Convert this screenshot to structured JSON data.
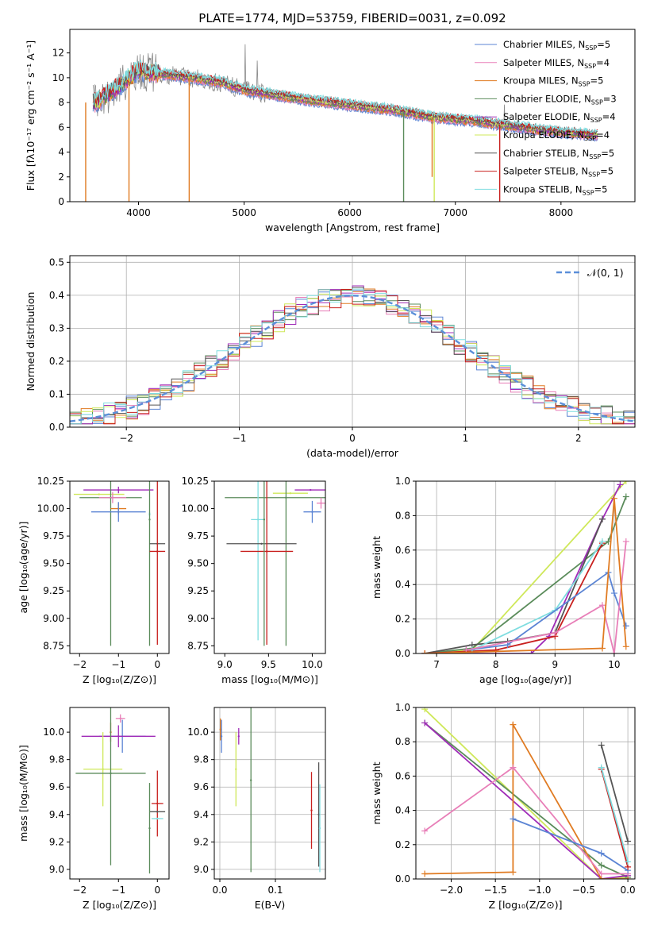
{
  "figure_title": "PLATE=1774, MJD=53759, FIBERID=0031, z=0.092",
  "colors": {
    "Chabrier MILES": "#5b84d4",
    "Salpeter MILES": "#e87fb8",
    "Kroupa MILES": "#e07b22",
    "Chabrier ELODIE": "#5b8c5b",
    "Salpeter ELODIE": "#a02cb8",
    "Kroupa ELODIE": "#cfe85a",
    "Chabrier STELIB": "#555555",
    "Salpeter STELIB": "#c8201e",
    "Kroupa STELIB": "#7fdde0",
    "gaussian": "#5b8fd9",
    "noisy_data": "#888888"
  },
  "chart_data": [
    {
      "id": "spectrum",
      "type": "line",
      "xlabel": "wavelength [Angstrom, rest frame]",
      "ylabel": "Flux [fλ10⁻¹⁷ erg cm⁻² s⁻¹ A⁻¹]",
      "xlim": [
        3350,
        8700
      ],
      "ylim": [
        0,
        13.9
      ],
      "xticks": [
        4000,
        5000,
        6000,
        7000,
        8000
      ],
      "yticks": [
        0,
        2,
        4,
        6,
        8,
        10,
        12
      ],
      "legend_position": "top-right",
      "legend": [
        {
          "name": "Chabrier MILES",
          "nssp": "5"
        },
        {
          "name": "Salpeter MILES",
          "nssp": "4"
        },
        {
          "name": "Kroupa MILES",
          "nssp": "5"
        },
        {
          "name": "Chabrier ELODIE",
          "nssp": "3"
        },
        {
          "name": "Salpeter ELODIE",
          "nssp": "4"
        },
        {
          "name": "Kroupa ELODIE",
          "nssp": "4"
        },
        {
          "name": "Chabrier STELIB",
          "nssp": "5"
        },
        {
          "name": "Salpeter STELIB",
          "nssp": "5"
        },
        {
          "name": "Kroupa STELIB",
          "nssp": "5"
        }
      ],
      "continuum_anchors": {
        "x": [
          3600,
          3800,
          4000,
          4200,
          4500,
          4800,
          5000,
          5300,
          5600,
          6000,
          6400,
          6800,
          7200,
          7600,
          8000,
          8300
        ],
        "y": [
          8.0,
          9.2,
          10.6,
          10.3,
          10.0,
          9.6,
          9.0,
          8.6,
          8.2,
          7.8,
          7.4,
          6.8,
          6.5,
          6.0,
          5.6,
          5.4
        ]
      },
      "features": [
        {
          "series": "Kroupa MILES",
          "x": 3500,
          "y": 0
        },
        {
          "series": "Kroupa MILES",
          "x": 3910,
          "y": 0
        },
        {
          "series": "Kroupa MILES",
          "x": 4480,
          "y": 0
        },
        {
          "series": "Chabrier ELODIE",
          "x": 6510,
          "y": 0
        },
        {
          "series": "Kroupa MILES",
          "x": 6780,
          "y": 2.0
        },
        {
          "series": "Kroupa ELODIE",
          "x": 6800,
          "y": 0
        },
        {
          "series": "Salpeter STELIB",
          "x": 7420,
          "y": 0
        }
      ]
    },
    {
      "id": "residuals",
      "type": "line",
      "xlabel": "(data-model)/error",
      "ylabel": "Normed distribution",
      "xlim": [
        -2.5,
        2.5
      ],
      "ylim": [
        0,
        0.52
      ],
      "xticks": [
        -2,
        -1,
        0,
        1,
        2
      ],
      "yticks": [
        0.0,
        0.1,
        0.2,
        0.3,
        0.4,
        0.5
      ],
      "grid": true,
      "legend": [
        {
          "name": "𝒩(0, 1)"
        }
      ],
      "legend_position": "top-right"
    },
    {
      "id": "age_vs_Z",
      "type": "scatter",
      "xlabel": "Z [log₁₀(Z/Z⊙)]",
      "ylabel": "age  [log₁₀(age/yr)]",
      "xlim": [
        -2.25,
        0.3
      ],
      "ylim": [
        8.68,
        10.25
      ],
      "xticks": [
        -2,
        -1,
        0
      ],
      "yticks": [
        8.75,
        9.0,
        9.25,
        9.5,
        9.75,
        10.0,
        10.25
      ],
      "points": [
        {
          "series": "Salpeter ELODIE",
          "x": -1.0,
          "xerr": 0.9,
          "y": 10.17,
          "yerr": 0.03
        },
        {
          "series": "Kroupa ELODIE",
          "x": -1.5,
          "xerr": 0.65,
          "y": 10.13,
          "yerr": 0.0
        },
        {
          "series": "Chabrier ELODIE",
          "x": -1.2,
          "xerr": 0.8,
          "y": 10.1,
          "yerr": 1.35
        },
        {
          "series": "Salpeter MILES",
          "x": -1.15,
          "xerr": 0.35,
          "y": 10.1,
          "yerr": 0.05
        },
        {
          "series": "Kroupa MILES",
          "x": -1.0,
          "xerr": 0.2,
          "y": 10.0,
          "yerr": 0.05
        },
        {
          "series": "Chabrier MILES",
          "x": -1.0,
          "xerr": 0.7,
          "y": 9.97,
          "yerr": 0.09
        },
        {
          "series": "Kroupa STELIB",
          "x": -0.2,
          "xerr": 0.0,
          "y": 9.95,
          "yerr": 0.02
        },
        {
          "series": "Chabrier ELODIE",
          "x": -0.2,
          "xerr": 0.0,
          "y": 9.9,
          "yerr": 1.15
        },
        {
          "series": "Chabrier STELIB",
          "x": 0.0,
          "xerr": 0.2,
          "y": 9.68,
          "yerr": 0.0
        },
        {
          "series": "Salpeter STELIB",
          "x": 0.0,
          "xerr": 0.2,
          "y": 9.61,
          "yerr": 0.85
        }
      ]
    },
    {
      "id": "age_vs_mass",
      "type": "scatter",
      "xlabel": "mass [log₁₀(M/M⊙)]",
      "xlim": [
        8.88,
        10.15
      ],
      "ylim": [
        8.68,
        10.25
      ],
      "xticks": [
        9.0,
        9.5,
        10.0
      ],
      "yticks": [
        8.75,
        9.0,
        9.25,
        9.5,
        9.75,
        10.0,
        10.25
      ],
      "points": [
        {
          "series": "Salpeter ELODIE",
          "x": 9.98,
          "xerr": 0.18,
          "y": 10.17,
          "yerr": 0.0
        },
        {
          "series": "Kroupa ELODIE",
          "x": 9.75,
          "xerr": 0.2,
          "y": 10.14,
          "yerr": 0.0
        },
        {
          "series": "Chabrier ELODIE",
          "x": 9.7,
          "xerr": 0.7,
          "y": 10.1,
          "yerr": 1.35
        },
        {
          "series": "Salpeter MILES",
          "x": 10.1,
          "xerr": 0.05,
          "y": 10.05,
          "yerr": 0.05
        },
        {
          "series": "Chabrier MILES",
          "x": 10.0,
          "xerr": 0.1,
          "y": 9.97,
          "yerr": 0.1
        },
        {
          "series": "Kroupa STELIB",
          "x": 9.38,
          "xerr": 0.08,
          "y": 9.9,
          "yerr": 1.1
        },
        {
          "series": "Chabrier STELIB",
          "x": 9.42,
          "xerr": 0.4,
          "y": 9.68,
          "yerr": 0.0
        },
        {
          "series": "Salpeter STELIB",
          "x": 9.48,
          "xerr": 0.3,
          "y": 9.61,
          "yerr": 0.85
        },
        {
          "series": "Chabrier ELODIE",
          "x": 9.45,
          "xerr": 0.0,
          "y": 9.9,
          "yerr": 1.15
        }
      ]
    },
    {
      "id": "weight_vs_age",
      "type": "line",
      "xlabel": "age  [log₁₀(age/yr)]",
      "ylabel": "mass weight",
      "xlim": [
        6.65,
        10.35
      ],
      "ylim": [
        0,
        1.0
      ],
      "xticks": [
        7,
        8,
        9,
        10
      ],
      "yticks": [
        0.0,
        0.2,
        0.4,
        0.6,
        0.8,
        1.0
      ],
      "grid": true,
      "series": [
        {
          "name": "Kroupa ELODIE",
          "points": [
            [
              6.8,
              0.0
            ],
            [
              7.6,
              0.02
            ],
            [
              10.2,
              1.0
            ]
          ]
        },
        {
          "name": "Chabrier ELODIE",
          "points": [
            [
              6.8,
              0.0
            ],
            [
              7.6,
              0.03
            ],
            [
              9.9,
              0.65
            ],
            [
              10.2,
              0.91
            ]
          ]
        },
        {
          "name": "Salpeter ELODIE",
          "points": [
            [
              6.8,
              0.0
            ],
            [
              8.6,
              0.0
            ],
            [
              8.9,
              0.1
            ],
            [
              9.8,
              0.78
            ],
            [
              10.1,
              0.98
            ]
          ]
        },
        {
          "name": "Chabrier STELIB",
          "points": [
            [
              6.8,
              0.0
            ],
            [
              7.6,
              0.05
            ],
            [
              8.2,
              0.07
            ],
            [
              9.0,
              0.12
            ],
            [
              9.8,
              0.78
            ]
          ]
        },
        {
          "name": "Salpeter STELIB",
          "points": [
            [
              6.8,
              0.0
            ],
            [
              8.0,
              0.02
            ],
            [
              9.0,
              0.1
            ],
            [
              9.8,
              0.64
            ]
          ]
        },
        {
          "name": "Kroupa STELIB",
          "points": [
            [
              7.6,
              0.02
            ],
            [
              9.0,
              0.25
            ],
            [
              9.8,
              0.65
            ]
          ]
        },
        {
          "name": "Chabrier MILES",
          "points": [
            [
              7.5,
              0.02
            ],
            [
              8.2,
              0.05
            ],
            [
              9.9,
              0.47
            ],
            [
              10.0,
              0.35
            ],
            [
              10.2,
              0.16
            ]
          ]
        },
        {
          "name": "Salpeter MILES",
          "points": [
            [
              7.5,
              0.02
            ],
            [
              9.0,
              0.12
            ],
            [
              9.8,
              0.28
            ],
            [
              10.0,
              0.0
            ],
            [
              10.2,
              0.65
            ]
          ]
        },
        {
          "name": "Kroupa MILES",
          "points": [
            [
              6.8,
              0.0
            ],
            [
              9.8,
              0.03
            ],
            [
              10.0,
              0.9
            ],
            [
              10.2,
              0.04
            ]
          ]
        }
      ]
    },
    {
      "id": "mass_vs_Z",
      "type": "scatter",
      "xlabel": "Z [log₁₀(Z/Z⊙)]",
      "ylabel": "mass [log₁₀(M/M⊙)]",
      "xlim": [
        -2.25,
        0.3
      ],
      "ylim": [
        8.93,
        10.18
      ],
      "xticks": [
        -2,
        -1,
        0
      ],
      "yticks": [
        9.0,
        9.2,
        9.4,
        9.6,
        9.8,
        10.0
      ],
      "points": [
        {
          "series": "Salpeter MILES",
          "x": -0.95,
          "xerr": 0.12,
          "y": 10.1,
          "yerr": 0.03
        },
        {
          "series": "Kroupa MILES",
          "x": -1.2,
          "xerr": 0.0,
          "y": 10.0,
          "yerr": 0.07
        },
        {
          "series": "Chabrier MILES",
          "x": -0.9,
          "xerr": 0.6,
          "y": 9.97,
          "yerr": 0.12
        },
        {
          "series": "Salpeter ELODIE",
          "x": -1.0,
          "xerr": 0.95,
          "y": 9.97,
          "yerr": 0.08
        },
        {
          "series": "Kroupa ELODIE",
          "x": -1.4,
          "xerr": 0.5,
          "y": 9.73,
          "yerr": 0.27
        },
        {
          "series": "Chabrier ELODIE",
          "x": -1.2,
          "xerr": 0.9,
          "y": 9.7,
          "yerr": 0.67
        },
        {
          "series": "Salpeter STELIB",
          "x": 0.0,
          "xerr": 0.15,
          "y": 9.48,
          "yerr": 0.24
        },
        {
          "series": "Chabrier STELIB",
          "x": 0.0,
          "xerr": 0.2,
          "y": 9.42,
          "yerr": 0.0
        },
        {
          "series": "Kroupa STELIB",
          "x": 0.0,
          "xerr": 0.15,
          "y": 9.37,
          "yerr": 0.0
        },
        {
          "series": "Chabrier ELODIE",
          "x": -0.2,
          "xerr": 0.0,
          "y": 9.3,
          "yerr": 0.33
        }
      ]
    },
    {
      "id": "mass_vs_EBV",
      "type": "scatter",
      "xlabel": "E(B-V)",
      "xlim": [
        -0.01,
        0.19
      ],
      "ylim": [
        8.93,
        10.18
      ],
      "xticks": [
        0.0,
        0.1
      ],
      "yticks": [
        9.0,
        9.2,
        9.4,
        9.6,
        9.8,
        10.0
      ],
      "grid": true,
      "points": [
        {
          "series": "Kroupa MILES",
          "x": 0.001,
          "xerr": 0.0,
          "y": 10.02,
          "yerr": 0.08
        },
        {
          "series": "Chabrier MILES",
          "x": 0.003,
          "xerr": 0.0,
          "y": 9.97,
          "yerr": 0.12
        },
        {
          "series": "Salpeter ELODIE",
          "x": 0.034,
          "xerr": 0.0,
          "y": 9.97,
          "yerr": 0.06
        },
        {
          "series": "Kroupa ELODIE",
          "x": 0.029,
          "xerr": 0.0,
          "y": 9.73,
          "yerr": 0.27
        },
        {
          "series": "Chabrier ELODIE",
          "x": 0.056,
          "xerr": 0.0,
          "y": 9.65,
          "yerr": 0.67
        },
        {
          "series": "Salpeter STELIB",
          "x": 0.165,
          "xerr": 0.0,
          "y": 9.43,
          "yerr": 0.28
        },
        {
          "series": "Chabrier STELIB",
          "x": 0.178,
          "xerr": 0.0,
          "y": 9.4,
          "yerr": 0.38
        },
        {
          "series": "Kroupa STELIB",
          "x": 0.18,
          "xerr": 0.0,
          "y": 9.3,
          "yerr": 0.32
        }
      ]
    },
    {
      "id": "weight_vs_Z",
      "type": "line",
      "xlabel": "Z [log₁₀(Z/Z⊙)]",
      "ylabel": "mass weight",
      "xlim": [
        -2.4,
        0.08
      ],
      "ylim": [
        0,
        1.0
      ],
      "xticks": [
        -2.0,
        -1.5,
        -1.0,
        -0.5,
        0.0
      ],
      "yticks": [
        0.0,
        0.2,
        0.4,
        0.6,
        0.8,
        1.0
      ],
      "grid": true,
      "series": [
        {
          "name": "Kroupa ELODIE",
          "points": [
            [
              -2.3,
              0.99
            ],
            [
              -0.3,
              0.0
            ],
            [
              0.0,
              0.01
            ]
          ]
        },
        {
          "name": "Chabrier ELODIE",
          "points": [
            [
              -2.3,
              0.91
            ],
            [
              -0.3,
              0.08
            ],
            [
              0.0,
              0.01
            ]
          ]
        },
        {
          "name": "Salpeter ELODIE",
          "points": [
            [
              -2.3,
              0.91
            ],
            [
              -0.3,
              0.0
            ],
            [
              0.0,
              0.02
            ]
          ]
        },
        {
          "name": "Kroupa MILES",
          "points": [
            [
              -2.3,
              0.03
            ],
            [
              -1.3,
              0.04
            ],
            [
              -1.3,
              0.9
            ],
            [
              -0.3,
              0.0
            ],
            [
              0.0,
              0.0
            ]
          ]
        },
        {
          "name": "Salpeter MILES",
          "points": [
            [
              -2.3,
              0.28
            ],
            [
              -1.3,
              0.65
            ],
            [
              -0.3,
              0.03
            ],
            [
              0.0,
              0.03
            ]
          ]
        },
        {
          "name": "Chabrier MILES",
          "points": [
            [
              -1.3,
              0.35
            ],
            [
              -0.3,
              0.15
            ],
            [
              0.0,
              0.05
            ]
          ]
        },
        {
          "name": "Chabrier STELIB",
          "points": [
            [
              -0.3,
              0.78
            ],
            [
              0.0,
              0.22
            ]
          ]
        },
        {
          "name": "Salpeter STELIB",
          "points": [
            [
              -0.3,
              0.64
            ],
            [
              0.0,
              0.07
            ]
          ]
        },
        {
          "name": "Kroupa STELIB",
          "points": [
            [
              -0.3,
              0.65
            ],
            [
              0.0,
              0.1
            ]
          ]
        }
      ]
    }
  ]
}
